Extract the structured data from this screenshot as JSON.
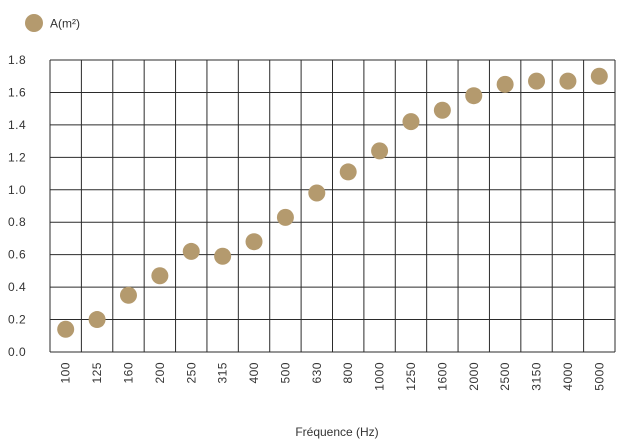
{
  "chart_data": {
    "type": "scatter",
    "categories": [
      "100",
      "125",
      "160",
      "200",
      "250",
      "315",
      "400",
      "500",
      "630",
      "800",
      "1000",
      "1250",
      "1600",
      "2000",
      "2500",
      "3150",
      "4000",
      "5000"
    ],
    "series": [
      {
        "name": "A(m²)",
        "values": [
          0.14,
          0.2,
          0.35,
          0.47,
          0.62,
          0.59,
          0.68,
          0.83,
          0.98,
          1.11,
          1.24,
          1.42,
          1.49,
          1.58,
          1.65,
          1.67,
          1.67,
          1.7
        ],
        "color": "#b49a6e"
      }
    ],
    "xlabel": "Fréquence (Hz)",
    "ylabel": "",
    "ylim": [
      0,
      1.8
    ],
    "yticks": [
      "0.0",
      "0.2",
      "0.4",
      "0.6",
      "0.8",
      "1.0",
      "1.2",
      "1.4",
      "1.6",
      "1.8"
    ],
    "grid": true,
    "legend_position": "top-left"
  }
}
